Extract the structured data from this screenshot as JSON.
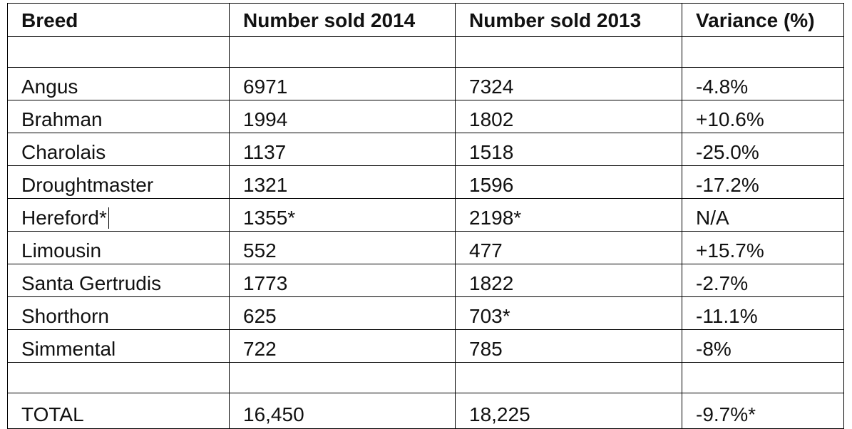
{
  "table": {
    "headers": [
      "Breed",
      "Number sold 2014",
      "Number sold 2013",
      "Variance (%)"
    ],
    "rows": [
      [
        "Angus",
        "6971",
        "7324",
        "-4.8%"
      ],
      [
        "Brahman",
        "1994",
        "1802",
        "+10.6%"
      ],
      [
        "Charolais",
        "1137",
        "1518",
        "-25.0%"
      ],
      [
        "Droughtmaster",
        "1321",
        "1596",
        "-17.2%"
      ],
      [
        "Hereford*",
        "1355*",
        "2198*",
        "N/A"
      ],
      [
        "Limousin",
        "552",
        "477",
        "+15.7%"
      ],
      [
        "Santa Gertrudis",
        "1773",
        "1822",
        "-2.7%"
      ],
      [
        "Shorthorn",
        "625",
        "703*",
        "-11.1%"
      ],
      [
        "Simmental",
        "722",
        "785",
        "-8%"
      ]
    ],
    "total": [
      "TOTAL",
      "16,450",
      "18,225",
      "-9.7%*"
    ]
  }
}
